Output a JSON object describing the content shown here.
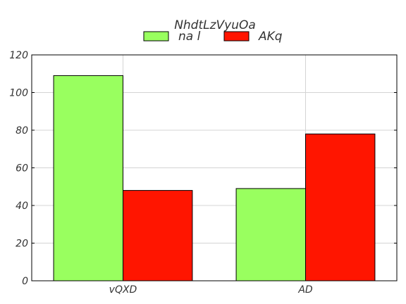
{
  "chart_data": {
    "type": "bar",
    "title": "NhdtLzVyuOa",
    "xlabel": "",
    "ylabel": "",
    "categories": [
      "vQXD",
      "AD"
    ],
    "series": [
      {
        "name": "na l",
        "values": [
          109,
          49
        ],
        "color": "#99ff5f"
      },
      {
        "name": "AKq",
        "values": [
          48,
          78
        ],
        "color": "#ff1500"
      }
    ],
    "ylim": [
      0,
      120
    ],
    "yticks": [
      0,
      20,
      40,
      60,
      80,
      100,
      120
    ],
    "grid": true,
    "legend_position": "top-center"
  }
}
